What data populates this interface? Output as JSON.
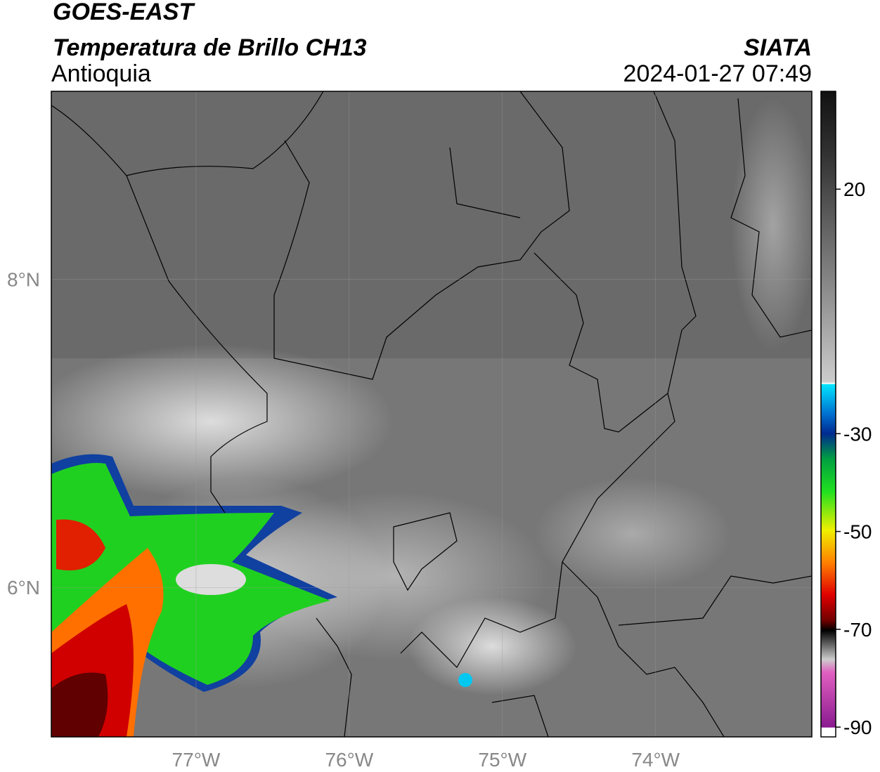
{
  "header": {
    "satellite": "GOES-EAST",
    "product": "Temperatura de Brillo CH13",
    "region": "Antioquia",
    "source": "SIATA",
    "datetime": "2024-01-27 07:49"
  },
  "map": {
    "xlim": [
      -77.945,
      -72.98
    ],
    "ylim": [
      5.03,
      9.22
    ],
    "xticks": [
      {
        "value": -77,
        "label": "77°W"
      },
      {
        "value": -76,
        "label": "76°W"
      },
      {
        "value": -75,
        "label": "75°W"
      },
      {
        "value": -74,
        "label": "74°W"
      }
    ],
    "yticks": [
      {
        "value": 8,
        "label": "8°N"
      },
      {
        "value": 6,
        "label": "6°N"
      }
    ]
  },
  "colorbar": {
    "lim": [
      -92,
      40
    ],
    "ticks": [
      20,
      -30,
      -50,
      -70,
      -90
    ]
  }
}
